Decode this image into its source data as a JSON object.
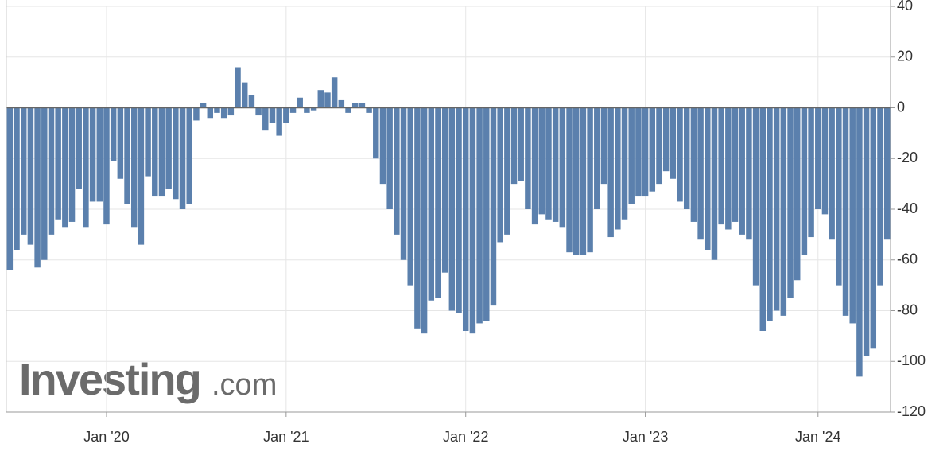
{
  "chart_data": {
    "type": "bar",
    "watermark": {
      "brand": "Investing",
      "suffix": ".com"
    },
    "categories": [
      null,
      null,
      null,
      null,
      null,
      null,
      null,
      null,
      null,
      null,
      null,
      null,
      null,
      null,
      "Jan '20",
      null,
      null,
      null,
      null,
      null,
      null,
      null,
      null,
      null,
      null,
      null,
      null,
      null,
      null,
      null,
      null,
      null,
      null,
      null,
      null,
      null,
      null,
      null,
      null,
      null,
      "Jan '21",
      null,
      null,
      null,
      null,
      null,
      null,
      null,
      null,
      null,
      null,
      null,
      null,
      null,
      null,
      null,
      null,
      null,
      null,
      null,
      null,
      null,
      null,
      null,
      null,
      null,
      "Jan '22",
      null,
      null,
      null,
      null,
      null,
      null,
      null,
      null,
      null,
      null,
      null,
      null,
      null,
      null,
      null,
      null,
      null,
      null,
      null,
      null,
      null,
      null,
      null,
      null,
      null,
      "Jan '23",
      null,
      null,
      null,
      null,
      null,
      null,
      null,
      null,
      null,
      null,
      null,
      null,
      null,
      null,
      null,
      null,
      null,
      null,
      null,
      null,
      null,
      null,
      null,
      null,
      "Jan '24",
      null,
      null,
      null,
      null,
      null,
      null,
      null,
      null,
      null,
      null
    ],
    "values": [
      -64,
      -56,
      -50,
      -54,
      -63,
      -60,
      -50,
      -44,
      -47,
      -45,
      -32,
      -47,
      -37,
      -37,
      -46,
      -21,
      -28,
      -38,
      -47,
      -54,
      -27,
      -35,
      -35,
      -32,
      -36,
      -40,
      -38,
      -5,
      2,
      -4,
      -2,
      -4,
      -3,
      16,
      10,
      5,
      -3,
      -9,
      -6,
      -11,
      -6,
      -2,
      4,
      -2,
      -1,
      7,
      6,
      12,
      3,
      -2,
      2,
      2,
      -2,
      -20,
      -30,
      -40,
      -50,
      -60,
      -70,
      -87,
      -89,
      -76,
      -75,
      -65,
      -80,
      -81,
      -88,
      -89,
      -85,
      -84,
      -78,
      -53,
      -50,
      -30,
      -29,
      -40,
      -46,
      -42,
      -44,
      -45,
      -47,
      -57,
      -58,
      -58,
      -57,
      -40,
      -30,
      -51,
      -48,
      -44,
      -38,
      -35,
      -35,
      -33,
      -30,
      -25,
      -28,
      -37,
      -40,
      -45,
      -52,
      -56,
      -60,
      -46,
      -48,
      -45,
      -50,
      -52,
      -70,
      -88,
      -84,
      -80,
      -82,
      -75,
      -68,
      -58,
      -51,
      -40,
      -42,
      -52,
      -70,
      -82,
      -85,
      -106,
      -98,
      -95,
      -70,
      -52
    ],
    "color": "#5b80ad",
    "ylim": [
      -120,
      40
    ],
    "yticks": [
      -120,
      -100,
      -80,
      -60,
      -40,
      -20,
      0,
      20,
      40
    ],
    "grid": true,
    "y_axis_side": "right"
  }
}
